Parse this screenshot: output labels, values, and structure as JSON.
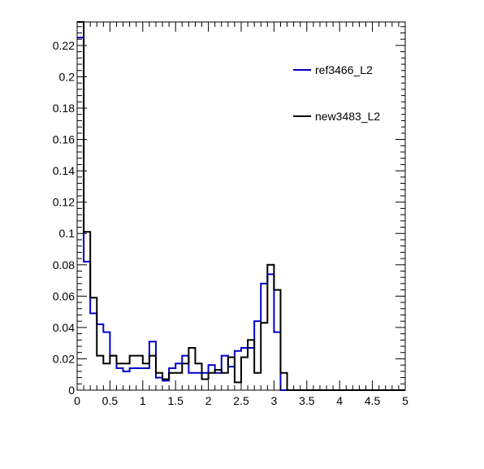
{
  "chart_data": {
    "type": "line",
    "style": "step-histogram",
    "xlim": [
      0,
      5
    ],
    "ylim": [
      0,
      0.235
    ],
    "x_ticks": [
      0,
      0.5,
      1,
      1.5,
      2,
      2.5,
      3,
      3.5,
      4,
      4.5,
      5
    ],
    "x_tick_labels": [
      "0",
      "0.5",
      "1",
      "1.5",
      "2",
      "2.5",
      "3",
      "3.5",
      "4",
      "4.5",
      "5"
    ],
    "y_ticks": [
      0,
      0.02,
      0.04,
      0.06,
      0.08,
      0.1,
      0.12,
      0.14,
      0.16,
      0.18,
      0.2,
      0.22
    ],
    "y_tick_labels": [
      "0",
      "0.02",
      "0.04",
      "0.06",
      "0.08",
      "0.1",
      "0.12",
      "0.14",
      "0.16",
      "0.18",
      "0.2",
      "0.22"
    ],
    "bin_width": 0.1,
    "grid": false,
    "legend_position": "top-right",
    "series": [
      {
        "name": "ref3466_L2",
        "color": "#0000cc",
        "values": [
          0.225,
          0.082,
          0.049,
          0.042,
          0.037,
          0.022,
          0.014,
          0.012,
          0.014,
          0.014,
          0.014,
          0.031,
          0.008,
          0.006,
          0.014,
          0.017,
          0.022,
          0.011,
          0.011,
          0.011,
          0.016,
          0.011,
          0.022,
          0.015,
          0.025,
          0.027,
          0.027,
          0.044,
          0.068,
          0.074,
          0.037,
          0,
          0,
          0,
          0,
          0,
          0,
          0,
          0,
          0,
          0,
          0,
          0,
          0,
          0,
          0,
          0,
          0,
          0,
          0
        ]
      },
      {
        "name": "new3483_L2",
        "color": "#000000",
        "values": [
          0.235,
          0.101,
          0.059,
          0.022,
          0.017,
          0.022,
          0.017,
          0.017,
          0.022,
          0.022,
          0.017,
          0.022,
          0.011,
          0.007,
          0.011,
          0.011,
          0.017,
          0.027,
          0.017,
          0.007,
          0.011,
          0.013,
          0.011,
          0.021,
          0.005,
          0.021,
          0.032,
          0.011,
          0.043,
          0.08,
          0.064,
          0.011,
          0,
          0,
          0,
          0,
          0,
          0,
          0,
          0,
          0,
          0,
          0,
          0,
          0,
          0,
          0,
          0,
          0,
          0
        ]
      }
    ]
  }
}
